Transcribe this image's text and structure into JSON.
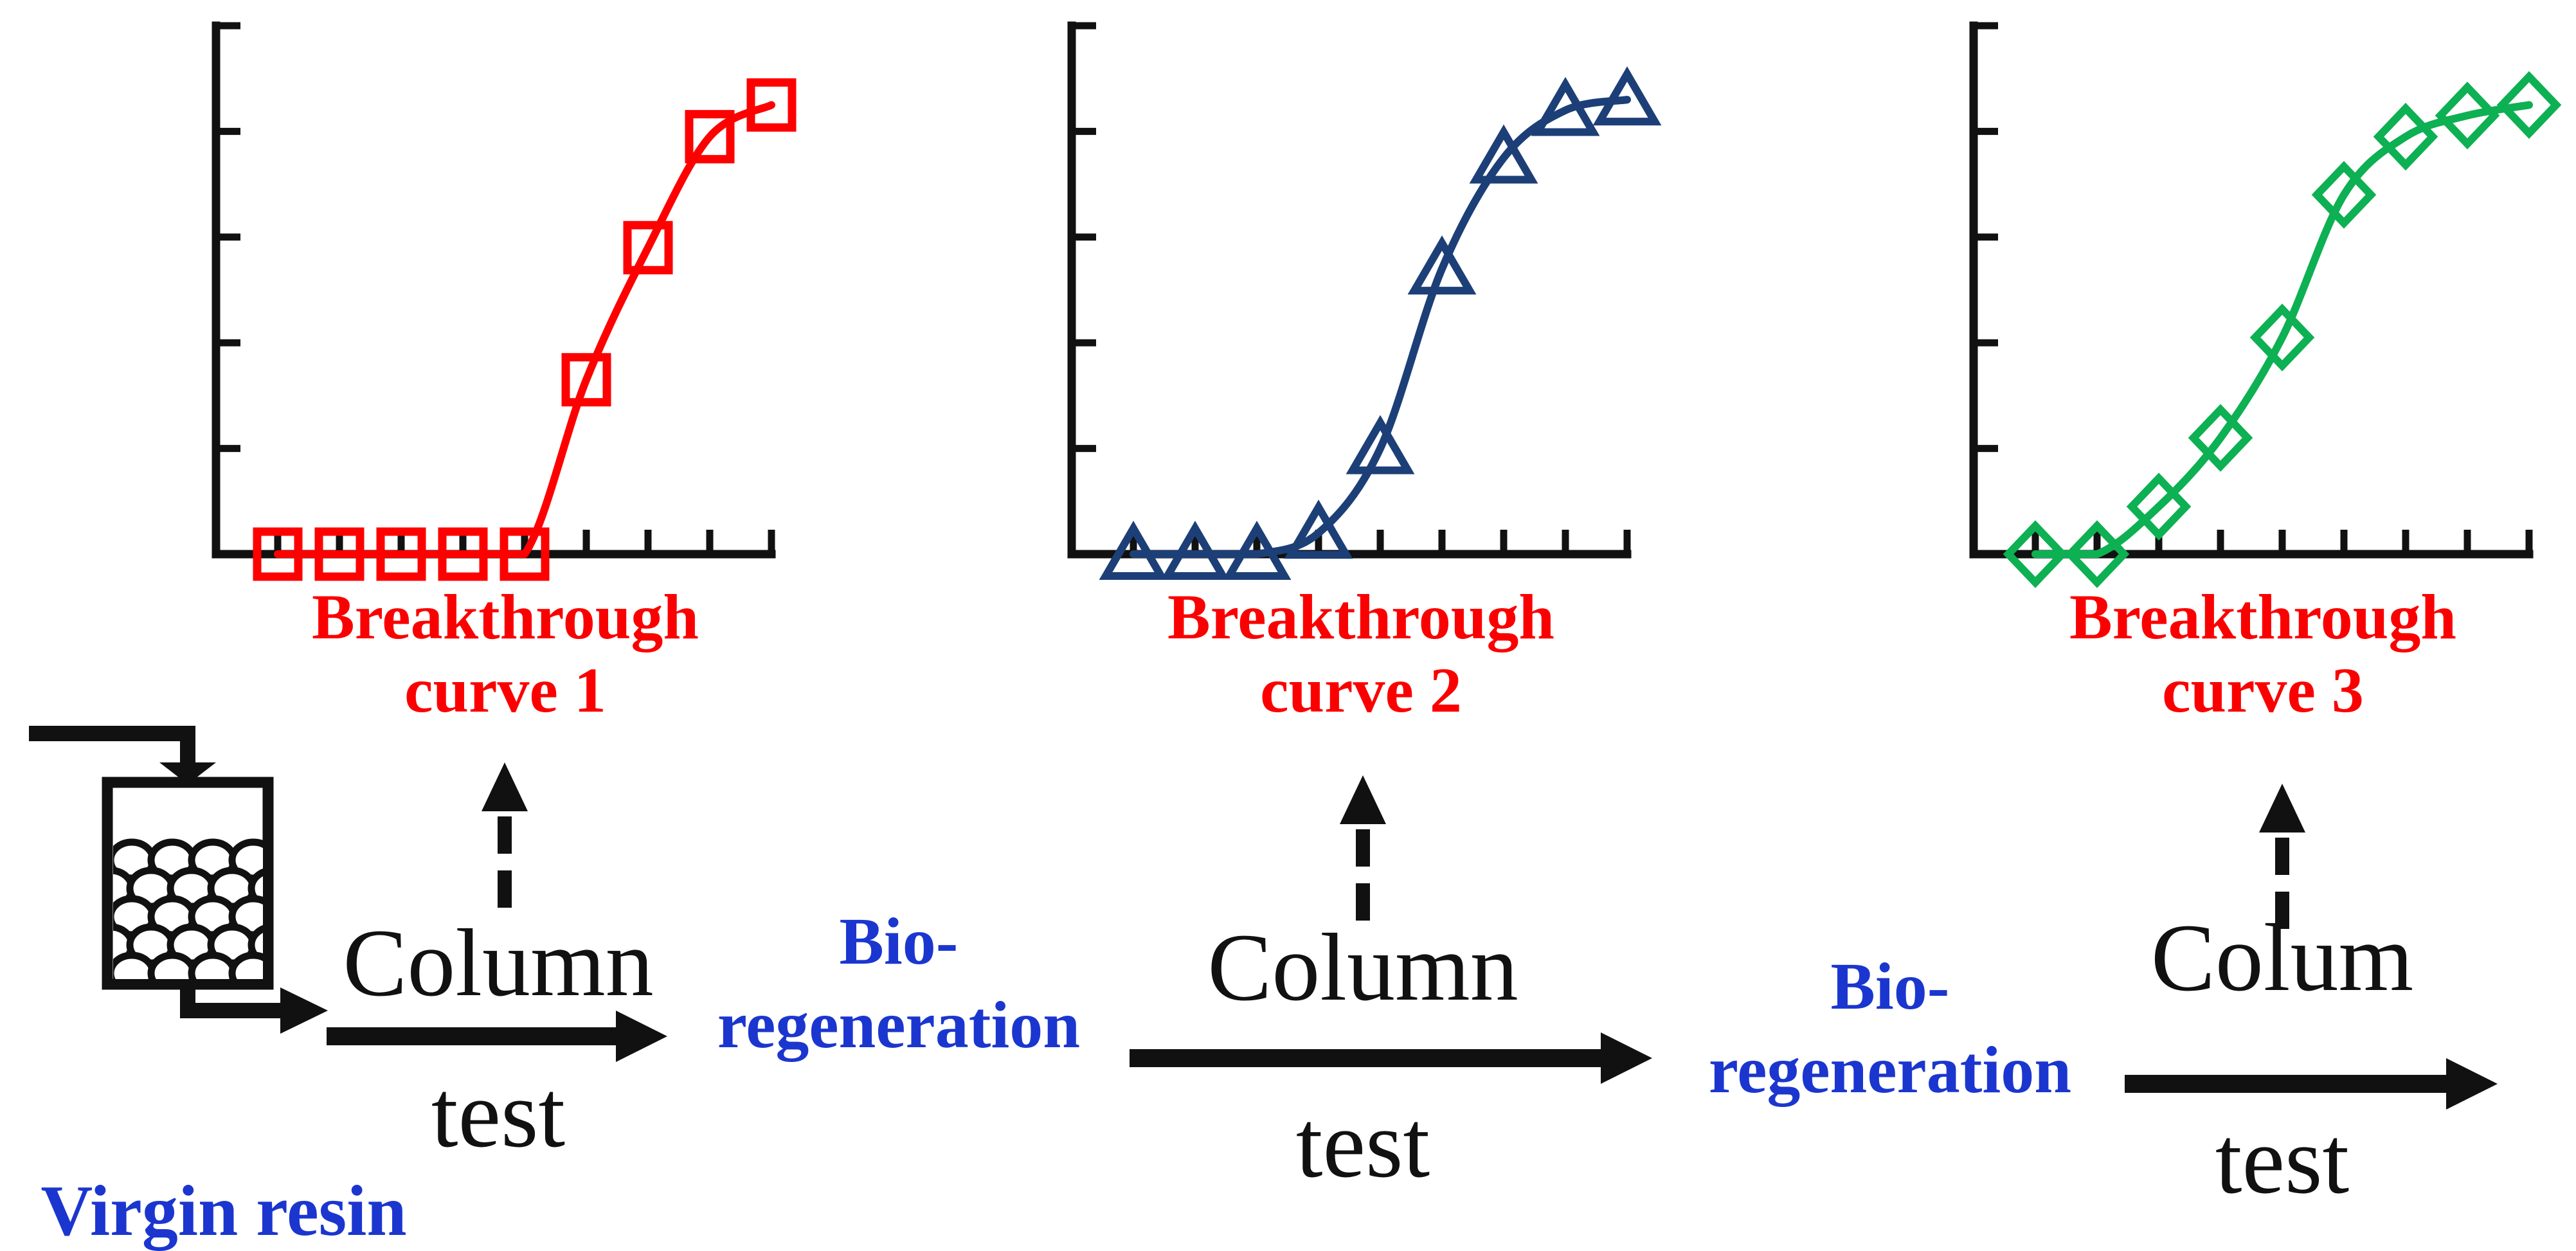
{
  "figure": {
    "background": "#ffffff",
    "description_colors": {
      "curve1_red": "#fe0000",
      "curve2_navy": "#1d3f77",
      "curve3_green": "#0db052",
      "label_red": "#fb0000",
      "process_blue": "#1b36cf",
      "ink_black": "#111111"
    }
  },
  "charts": [
    {
      "label_line1": "Breakthrough",
      "label_line2": "curve 1"
    },
    {
      "label_line1": "Breakthrough",
      "label_line2": "curve 2"
    },
    {
      "label_line1": "Breakthrough",
      "label_line2": "curve 3"
    }
  ],
  "chart_data": [
    {
      "type": "line",
      "title": "Breakthrough curve 1",
      "marker": "square",
      "color": "#fe0000",
      "x": [
        1,
        2,
        3,
        4,
        5,
        6,
        7,
        8,
        9
      ],
      "y": [
        0,
        0,
        0,
        0,
        0,
        0.33,
        0.58,
        0.79,
        0.85
      ],
      "xlabel": "",
      "ylabel": "",
      "xlim": [
        0,
        9.3
      ],
      "ylim": [
        0,
        1.0
      ],
      "x_ticks": [
        1,
        2,
        3,
        4,
        5,
        6,
        7,
        8,
        9
      ],
      "y_ticks": [
        0.2,
        0.4,
        0.6,
        0.8,
        1.0
      ],
      "grid": false,
      "legend": "none",
      "tick_labels_shown": false
    },
    {
      "type": "line",
      "title": "Breakthrough curve 2",
      "marker": "triangle",
      "color": "#1d3f77",
      "x": [
        1,
        2,
        3,
        4,
        5,
        6,
        7,
        8,
        9
      ],
      "y": [
        0,
        0,
        0,
        0.04,
        0.2,
        0.54,
        0.75,
        0.84,
        0.86
      ],
      "xlabel": "",
      "ylabel": "",
      "xlim": [
        0,
        9.3
      ],
      "ylim": [
        0,
        1.0
      ],
      "x_ticks": [
        1,
        2,
        3,
        4,
        5,
        6,
        7,
        8,
        9
      ],
      "y_ticks": [
        0.2,
        0.4,
        0.6,
        0.8,
        1.0
      ],
      "grid": false,
      "legend": "none",
      "tick_labels_shown": false
    },
    {
      "type": "line",
      "title": "Breakthrough curve 3",
      "marker": "diamond",
      "color": "#0db052",
      "x": [
        1,
        2,
        3,
        4,
        5,
        6,
        7,
        8,
        9
      ],
      "y": [
        0,
        0,
        0.09,
        0.22,
        0.41,
        0.68,
        0.79,
        0.83,
        0.85
      ],
      "xlabel": "",
      "ylabel": "",
      "xlim": [
        0,
        9.3
      ],
      "ylim": [
        0,
        1.0
      ],
      "x_ticks": [
        1,
        2,
        3,
        4,
        5,
        6,
        7,
        8,
        9
      ],
      "y_ticks": [
        0.2,
        0.4,
        0.6,
        0.8,
        1.0
      ],
      "grid": false,
      "legend": "none",
      "tick_labels_shown": false
    }
  ],
  "flow": {
    "source_label": "Virgin resin",
    "steps": [
      {
        "top": "Column",
        "bottom": "test"
      },
      {
        "top": "Column",
        "bottom": "test"
      },
      {
        "top": "Colum",
        "bottom": "test"
      }
    ],
    "bio_steps": [
      {
        "line1": "Bio-",
        "line2": "regeneration"
      },
      {
        "line1": "Bio-",
        "line2": "regeneration"
      }
    ]
  }
}
